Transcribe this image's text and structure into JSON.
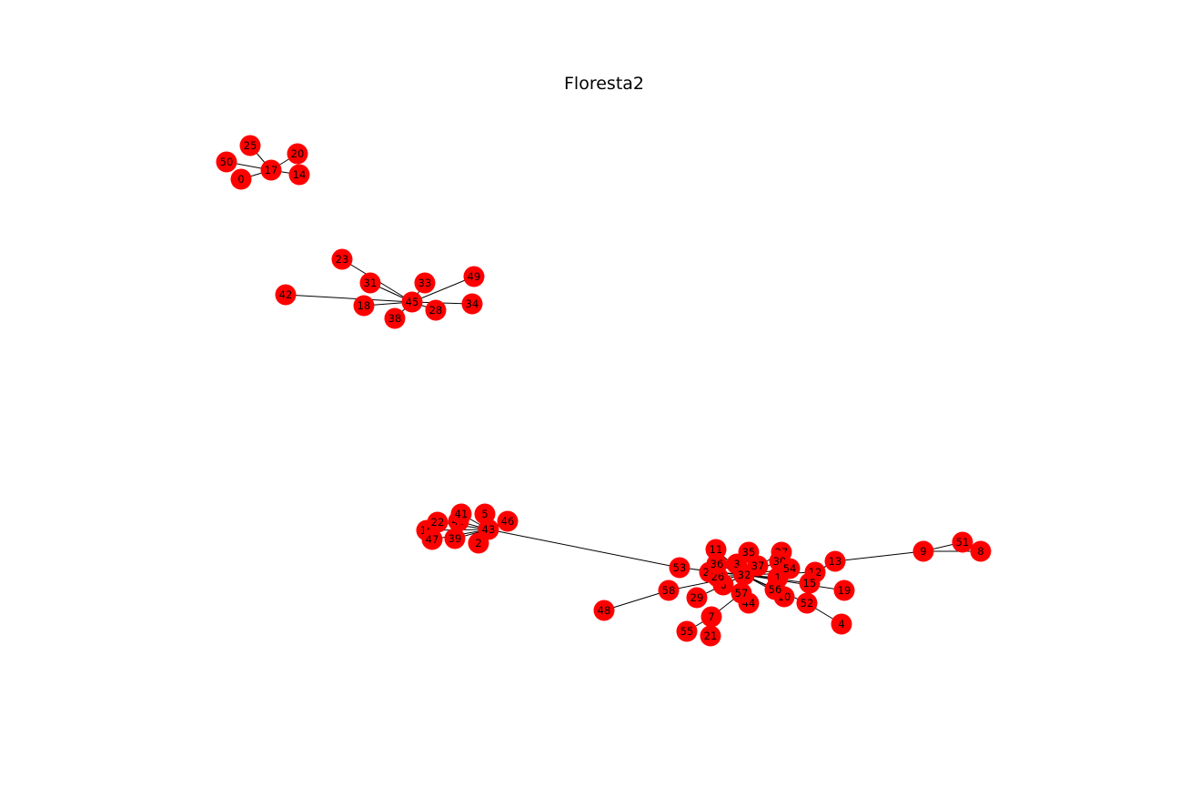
{
  "title": "Floresta2",
  "colors": {
    "node": "#ff0000",
    "edge": "#000000",
    "background": "#ffffff"
  },
  "graph": {
    "nodes": [
      "0",
      "1",
      "2",
      "3",
      "4",
      "5",
      "6",
      "7",
      "8",
      "9",
      "10",
      "11",
      "12",
      "13",
      "14",
      "15",
      "16",
      "17",
      "18",
      "19",
      "20",
      "21",
      "22",
      "23",
      "24",
      "25",
      "26",
      "27",
      "28",
      "29",
      "30",
      "31",
      "32",
      "33",
      "34",
      "35",
      "36",
      "37",
      "38",
      "39",
      "40",
      "41",
      "42",
      "43",
      "44",
      "45",
      "46",
      "47",
      "48",
      "49",
      "50",
      "51",
      "52",
      "53",
      "54",
      "55",
      "56",
      "57",
      "58"
    ],
    "edges": [
      [
        "17",
        "25"
      ],
      [
        "17",
        "20"
      ],
      [
        "17",
        "50"
      ],
      [
        "17",
        "0"
      ],
      [
        "17",
        "14"
      ],
      [
        "45",
        "23"
      ],
      [
        "45",
        "31"
      ],
      [
        "45",
        "33"
      ],
      [
        "45",
        "49"
      ],
      [
        "45",
        "34"
      ],
      [
        "45",
        "42"
      ],
      [
        "45",
        "18"
      ],
      [
        "45",
        "38"
      ],
      [
        "45",
        "28"
      ],
      [
        "43",
        "16"
      ],
      [
        "43",
        "22"
      ],
      [
        "43",
        "40"
      ],
      [
        "43",
        "41"
      ],
      [
        "43",
        "5"
      ],
      [
        "43",
        "46"
      ],
      [
        "43",
        "47"
      ],
      [
        "43",
        "39"
      ],
      [
        "43",
        "2"
      ],
      [
        "43",
        "53"
      ],
      [
        "32",
        "11"
      ],
      [
        "32",
        "35"
      ],
      [
        "32",
        "27"
      ],
      [
        "32",
        "30"
      ],
      [
        "32",
        "54"
      ],
      [
        "32",
        "37"
      ],
      [
        "32",
        "3"
      ],
      [
        "32",
        "36"
      ],
      [
        "32",
        "24"
      ],
      [
        "32",
        "26"
      ],
      [
        "32",
        "6"
      ],
      [
        "32",
        "1"
      ],
      [
        "32",
        "56"
      ],
      [
        "32",
        "10"
      ],
      [
        "32",
        "52"
      ],
      [
        "32",
        "15"
      ],
      [
        "32",
        "19"
      ],
      [
        "32",
        "12"
      ],
      [
        "32",
        "53"
      ],
      [
        "32",
        "58"
      ],
      [
        "32",
        "29"
      ],
      [
        "32",
        "57"
      ],
      [
        "32",
        "44"
      ],
      [
        "52",
        "4"
      ],
      [
        "12",
        "13"
      ],
      [
        "13",
        "9"
      ],
      [
        "9",
        "51"
      ],
      [
        "9",
        "8"
      ],
      [
        "58",
        "48"
      ],
      [
        "57",
        "7"
      ],
      [
        "7",
        "55"
      ],
      [
        "7",
        "21"
      ]
    ]
  }
}
